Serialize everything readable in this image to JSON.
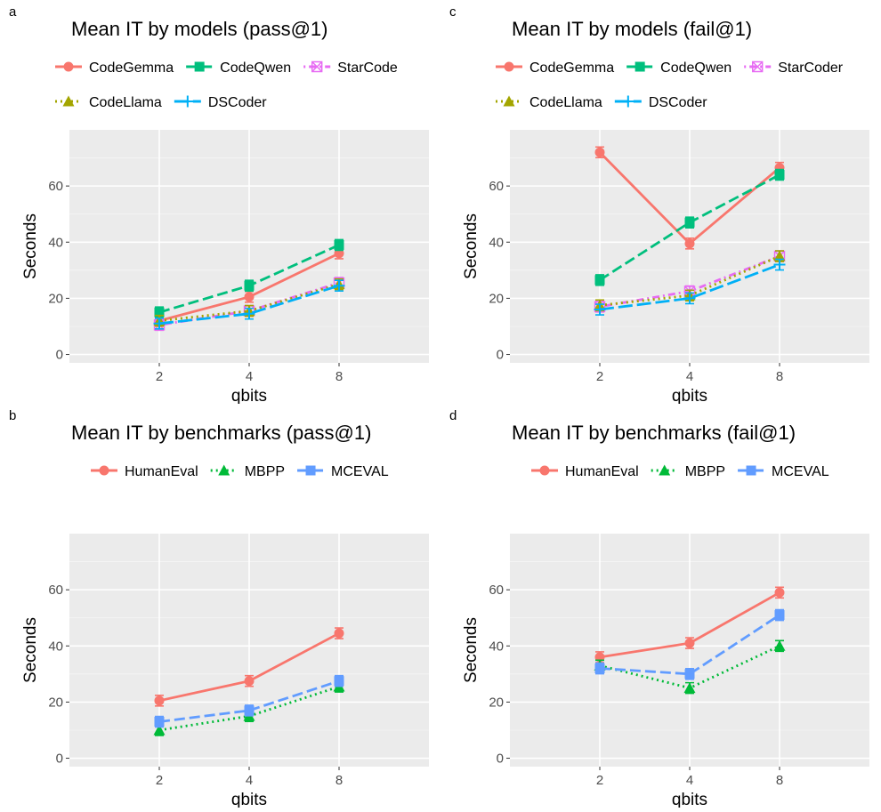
{
  "chart_data": [
    {
      "panel_letter": "a",
      "type": "line",
      "title": "Mean IT by models (pass@1)",
      "xlabel": "qbits",
      "ylabel": "Seconds",
      "x": [
        2,
        4,
        8
      ],
      "x_axis": "categorical",
      "ylim": [
        -3,
        80
      ],
      "yticks": [
        0,
        20,
        40,
        60
      ],
      "grid": true,
      "legend_position": "top",
      "legend_rows": [
        [
          "CodeGemma",
          "CodeQwen",
          "StarCode"
        ],
        [
          "CodeLlama",
          "DSCoder"
        ]
      ],
      "series": [
        {
          "name": "CodeGemma",
          "values": [
            12,
            20.5,
            36
          ],
          "color": "#F8766D",
          "marker": "circle",
          "dash": "solid"
        },
        {
          "name": "CodeQwen",
          "values": [
            15,
            24.5,
            39
          ],
          "color": "#00BF7D",
          "marker": "square",
          "dash": "dashed"
        },
        {
          "name": "StarCode",
          "values": [
            10.5,
            15.5,
            25.5
          ],
          "color": "#E76BF3",
          "marker": "boxx",
          "dash": "dotdash"
        },
        {
          "name": "CodeLlama",
          "values": [
            12,
            15.5,
            25
          ],
          "color": "#A3A500",
          "marker": "triangle",
          "dash": "dotted"
        },
        {
          "name": "DSCoder",
          "values": [
            11,
            14.5,
            24.5
          ],
          "color": "#00B0F6",
          "marker": "plus",
          "dash": "longdash"
        }
      ]
    },
    {
      "panel_letter": "c",
      "type": "line",
      "title": "Mean IT by models (fail@1)",
      "xlabel": "qbits",
      "ylabel": "Seconds",
      "x": [
        2,
        4,
        8
      ],
      "x_axis": "categorical",
      "ylim": [
        -3,
        80
      ],
      "yticks": [
        0,
        20,
        40,
        60
      ],
      "grid": true,
      "legend_position": "top",
      "legend_rows": [
        [
          "CodeGemma",
          "CodeQwen",
          "StarCoder"
        ],
        [
          "CodeLlama",
          "DSCoder"
        ]
      ],
      "series": [
        {
          "name": "CodeGemma",
          "values": [
            72,
            39.5,
            66.5
          ],
          "color": "#F8766D",
          "marker": "circle",
          "dash": "solid"
        },
        {
          "name": "CodeQwen",
          "values": [
            26.5,
            47,
            64
          ],
          "color": "#00BF7D",
          "marker": "square",
          "dash": "dashed"
        },
        {
          "name": "StarCoder",
          "values": [
            17,
            22.5,
            35
          ],
          "color": "#E76BF3",
          "marker": "boxx",
          "dash": "dotdash"
        },
        {
          "name": "CodeLlama",
          "values": [
            17.5,
            21,
            35
          ],
          "color": "#A3A500",
          "marker": "triangle",
          "dash": "dotted"
        },
        {
          "name": "DSCoder",
          "values": [
            16,
            20,
            32
          ],
          "color": "#00B0F6",
          "marker": "plus",
          "dash": "longdash"
        }
      ]
    },
    {
      "panel_letter": "b",
      "type": "line",
      "title": "Mean IT by benchmarks (pass@1)",
      "xlabel": "qbits",
      "ylabel": "Seconds",
      "x": [
        2,
        4,
        8
      ],
      "x_axis": "categorical",
      "ylim": [
        -3,
        80
      ],
      "yticks": [
        0,
        20,
        40,
        60
      ],
      "grid": true,
      "legend_position": "top",
      "legend_rows": [
        [
          "HumanEval",
          "MBPP",
          "MCEVAL"
        ]
      ],
      "series": [
        {
          "name": "HumanEval",
          "values": [
            20.5,
            27.5,
            44.5
          ],
          "color": "#F8766D",
          "marker": "circle",
          "dash": "solid"
        },
        {
          "name": "MBPP",
          "values": [
            10,
            15,
            25.5
          ],
          "color": "#00BA38",
          "marker": "triangle",
          "dash": "dotted"
        },
        {
          "name": "MCEVAL",
          "values": [
            13,
            17,
            27.5
          ],
          "color": "#619CFF",
          "marker": "square",
          "dash": "dashed"
        }
      ]
    },
    {
      "panel_letter": "d",
      "type": "line",
      "title": "Mean IT by benchmarks (fail@1)",
      "xlabel": "qbits",
      "ylabel": "Seconds",
      "x": [
        2,
        4,
        8
      ],
      "x_axis": "categorical",
      "ylim": [
        -3,
        80
      ],
      "yticks": [
        0,
        20,
        40,
        60
      ],
      "grid": true,
      "legend_position": "top",
      "legend_rows": [
        [
          "HumanEval",
          "MBPP",
          "MCEVAL"
        ]
      ],
      "series": [
        {
          "name": "HumanEval",
          "values": [
            36,
            41,
            59
          ],
          "color": "#F8766D",
          "marker": "circle",
          "dash": "solid"
        },
        {
          "name": "MBPP",
          "values": [
            33,
            25,
            40
          ],
          "color": "#00BA38",
          "marker": "triangle",
          "dash": "dotted"
        },
        {
          "name": "MCEVAL",
          "values": [
            32,
            30,
            51
          ],
          "color": "#619CFF",
          "marker": "square",
          "dash": "dashed"
        }
      ]
    }
  ]
}
